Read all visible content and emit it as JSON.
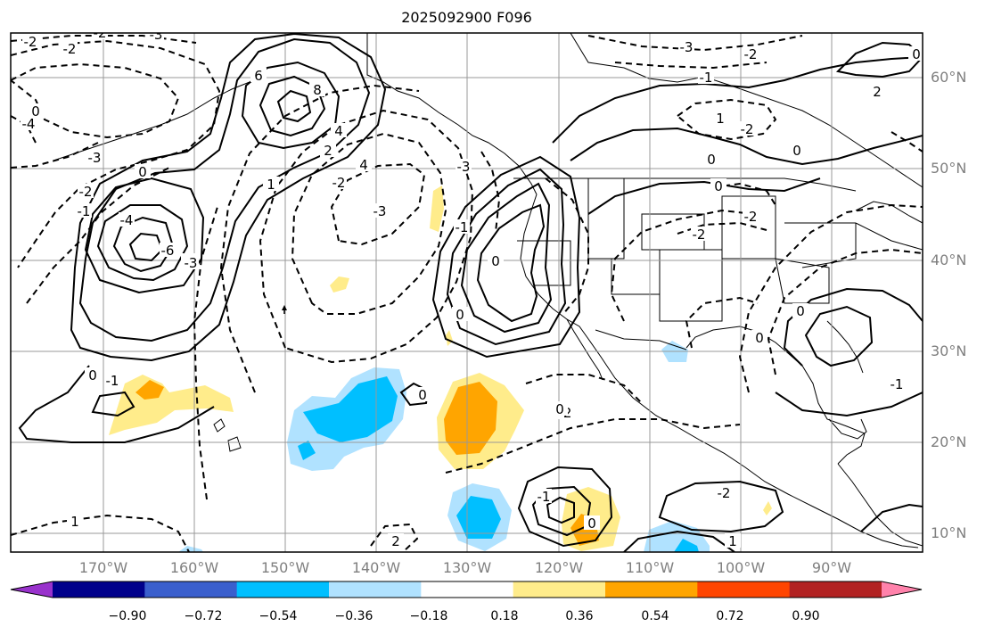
{
  "title": "2025092900 F096",
  "map": {
    "lat_labels": [
      "60°N",
      "50°N",
      "40°N",
      "30°N",
      "20°N",
      "10°N"
    ],
    "lon_labels": [
      "170°W",
      "160°W",
      "150°W",
      "140°W",
      "130°W",
      "120°W",
      "110°W",
      "100°W",
      "90°W"
    ],
    "contour_labels": [
      "-2",
      "-2",
      "-3",
      "-2",
      "0",
      "-4",
      "-3",
      "-2",
      "-1",
      "0",
      "-4",
      "-3",
      "6",
      "8",
      "4",
      "2",
      "1",
      "4",
      "-6",
      "-3",
      "-3",
      "-2",
      "-3",
      "-1",
      "-1",
      "0",
      "-3",
      "-2",
      "-1",
      "1",
      "0",
      "-2",
      "2",
      "0",
      "0",
      "-2",
      "-2",
      "0",
      "0",
      "-2",
      "0",
      "-1",
      "-1",
      "0",
      "-2",
      "1",
      "1",
      "2",
      "0",
      "0",
      "0",
      "0"
    ],
    "shading_levels": [
      "0.18",
      "0.36",
      "0.54"
    ]
  },
  "colorbar": {
    "colors": [
      "#9932cc",
      "#00008b",
      "#3a5fcd",
      "#00bfff",
      "#b0e2ff",
      "#ffffff",
      "#ffec8b",
      "#ffa500",
      "#ff4500",
      "#b22222",
      "#ff82ab"
    ],
    "ticks": [
      "−0.90",
      "−0.72",
      "−0.54",
      "−0.36",
      "−0.18",
      "0.18",
      "0.36",
      "0.54",
      "0.72",
      "0.90"
    ]
  }
}
